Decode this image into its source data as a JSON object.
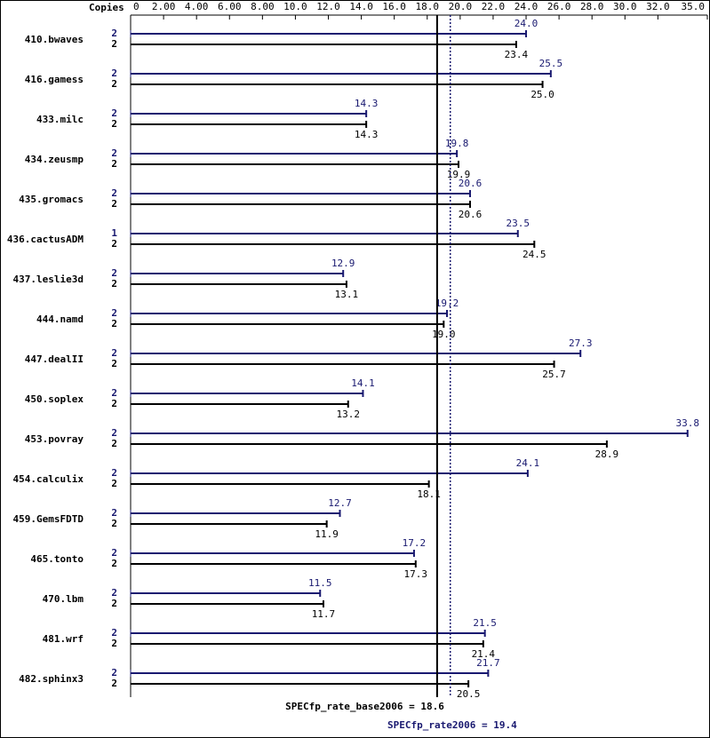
{
  "chart_data": {
    "type": "bar",
    "orientation": "horizontal",
    "copies_label": "Copies",
    "categories": [
      "410.bwaves",
      "416.gamess",
      "433.milc",
      "434.zeusmp",
      "435.gromacs",
      "436.cactusADM",
      "437.leslie3d",
      "444.namd",
      "447.dealII",
      "450.soplex",
      "453.povray",
      "454.calculix",
      "459.GemsFDTD",
      "465.tonto",
      "470.lbm",
      "481.wrf",
      "482.sphinx3"
    ],
    "series": [
      {
        "color": "#191970",
        "copies": [
          2,
          2,
          2,
          2,
          2,
          1,
          2,
          2,
          2,
          2,
          2,
          2,
          2,
          2,
          2,
          2,
          2
        ],
        "values": [
          24.0,
          25.5,
          14.3,
          19.8,
          20.6,
          23.5,
          12.9,
          19.2,
          27.3,
          14.1,
          33.8,
          24.1,
          12.7,
          17.2,
          11.5,
          21.5,
          21.7
        ],
        "value_labels": [
          "24.0",
          "25.5",
          "14.3",
          "19.8",
          "20.6",
          "23.5",
          "12.9",
          "19.2",
          "27.3",
          "14.1",
          "33.8",
          "24.1",
          "12.7",
          "17.2",
          "11.5",
          "21.5",
          "21.7"
        ]
      },
      {
        "color": "#000000",
        "copies": [
          2,
          2,
          2,
          2,
          2,
          2,
          2,
          2,
          2,
          2,
          2,
          2,
          2,
          2,
          2,
          2,
          2
        ],
        "values": [
          23.4,
          25.0,
          14.3,
          19.9,
          20.6,
          24.5,
          13.1,
          19.0,
          25.7,
          13.2,
          28.9,
          18.1,
          11.9,
          17.3,
          11.7,
          21.4,
          20.5
        ],
        "value_labels": [
          "23.4",
          "25.0",
          "14.3",
          "19.9",
          "20.6",
          "24.5",
          "13.1",
          "19.0",
          "25.7",
          "13.2",
          "28.9",
          "18.1",
          "11.9",
          "17.3",
          "11.7",
          "21.4",
          "20.5"
        ]
      }
    ],
    "xlim": [
      0,
      35
    ],
    "xticks": [
      0,
      {
        "value": 2,
        "label": "2.00"
      },
      {
        "value": 4,
        "label": "4.00"
      },
      {
        "value": 6,
        "label": "6.00"
      },
      {
        "value": 8,
        "label": "8.00"
      },
      {
        "value": 10,
        "label": "10.0"
      },
      {
        "value": 12,
        "label": "12.0"
      },
      {
        "value": 14,
        "label": "14.0"
      },
      {
        "value": 16,
        "label": "16.0"
      },
      {
        "value": 18,
        "label": "18.0"
      },
      {
        "value": 20,
        "label": "20.0"
      },
      {
        "value": 22,
        "label": "22.0"
      },
      {
        "value": 24,
        "label": "24.0"
      },
      {
        "value": 26,
        "label": "26.0"
      },
      {
        "value": 28,
        "label": "28.0"
      },
      {
        "value": 30,
        "label": "30.0"
      },
      {
        "value": 32,
        "label": "32.0"
      },
      {
        "value": 35,
        "label": "35.0"
      }
    ],
    "reference_lines": [
      {
        "value": 18.6,
        "label": "SPECfp_rate_base2006 = 18.6",
        "color": "#000000",
        "style": "solid"
      },
      {
        "value": 19.4,
        "label": "SPECfp_rate2006 = 19.4",
        "color": "#191970",
        "style": "dotted"
      }
    ]
  }
}
